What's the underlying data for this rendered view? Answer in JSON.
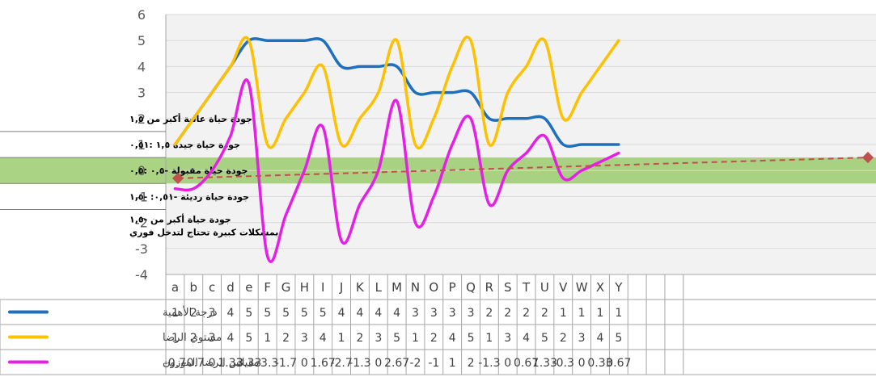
{
  "chart_data": {
    "type": "line",
    "categories": [
      "a",
      "b",
      "c",
      "d",
      "e",
      "F",
      "G",
      "H",
      "I",
      "J",
      "K",
      "L",
      "M",
      "N",
      "O",
      "P",
      "Q",
      "R",
      "S",
      "T",
      "U",
      "V",
      "W",
      "X",
      "Y"
    ],
    "ylim": [
      -4,
      6
    ],
    "yticks": [
      "6",
      "5",
      "4",
      "3",
      "2",
      "1",
      "0",
      "-1",
      "-2",
      "-3",
      "-4"
    ],
    "series": [
      {
        "name": "درجة الأهمية",
        "color": "#1F6FBF",
        "values": [
          1,
          2,
          3,
          4,
          5,
          5,
          5,
          5,
          5,
          4,
          4,
          4,
          4,
          3,
          3,
          3,
          3,
          2,
          2,
          2,
          2,
          1,
          1,
          1,
          1
        ],
        "labels": [
          "1",
          "2",
          "3",
          "4",
          "5",
          "5",
          "5",
          "5",
          "5",
          "4",
          "4",
          "4",
          "4",
          "3",
          "3",
          "3",
          "3",
          "2",
          "2",
          "2",
          "2",
          "1",
          "1",
          "1",
          "1"
        ]
      },
      {
        "name": "مستوي الرضا",
        "color": "#FFC000",
        "values": [
          1,
          2,
          3,
          4,
          5,
          1,
          2,
          3,
          4,
          1,
          2,
          3,
          5,
          1,
          2,
          4,
          5,
          1,
          3,
          4,
          5,
          2,
          3,
          4,
          5
        ],
        "labels": [
          "1",
          "2",
          "3",
          "4",
          "5",
          "1",
          "2",
          "3",
          "4",
          "1",
          "2",
          "3",
          "5",
          "1",
          "2",
          "4",
          "5",
          "1",
          "3",
          "4",
          "5",
          "2",
          "3",
          "4",
          "5"
        ]
      },
      {
        "name": "مقياس الرضا  الموزون",
        "color": "#E61FE6",
        "values": [
          -0.7,
          -0.7,
          0,
          1.33,
          3.33,
          -3.3,
          -1.7,
          0,
          1.67,
          -2.7,
          -1.3,
          0,
          2.67,
          -2,
          -1,
          1,
          2,
          -1.3,
          0,
          0.67,
          1.33,
          -0.3,
          0,
          0.33,
          0.67
        ],
        "labels": [
          "-0.7",
          "-0.7",
          "0",
          "1.33",
          "3.33",
          "-3.3",
          "-1.7",
          "0",
          "1.67",
          "-2.7",
          "-1.3",
          "0",
          "2.67",
          "-2",
          "-1",
          "1",
          "2",
          "-1.3",
          "0",
          "0.67",
          "1.33",
          "-0.3",
          "0",
          "0.33",
          "0.67"
        ]
      }
    ],
    "trendline": {
      "from": -0.3,
      "to": 0.5,
      "color": "#C0504D"
    },
    "acceptable_band": {
      "from": -0.5,
      "to": 0.5,
      "color": "#9BCB6F"
    },
    "band_labels": [
      "جودة حياة عالية   أكبر من ١,٥",
      "جودة حياة جيدة    ١,٥ :٠,٥١",
      "جودة حياة مقبولة   -٠,٥ :٠,٥",
      "جودة حياة رديئة   -٠,٥١: -١,٥",
      "جودة حياة          أكبر من -١,٥",
      "بمشكلات كبيرة تحتاج لتدخل فوري"
    ]
  }
}
